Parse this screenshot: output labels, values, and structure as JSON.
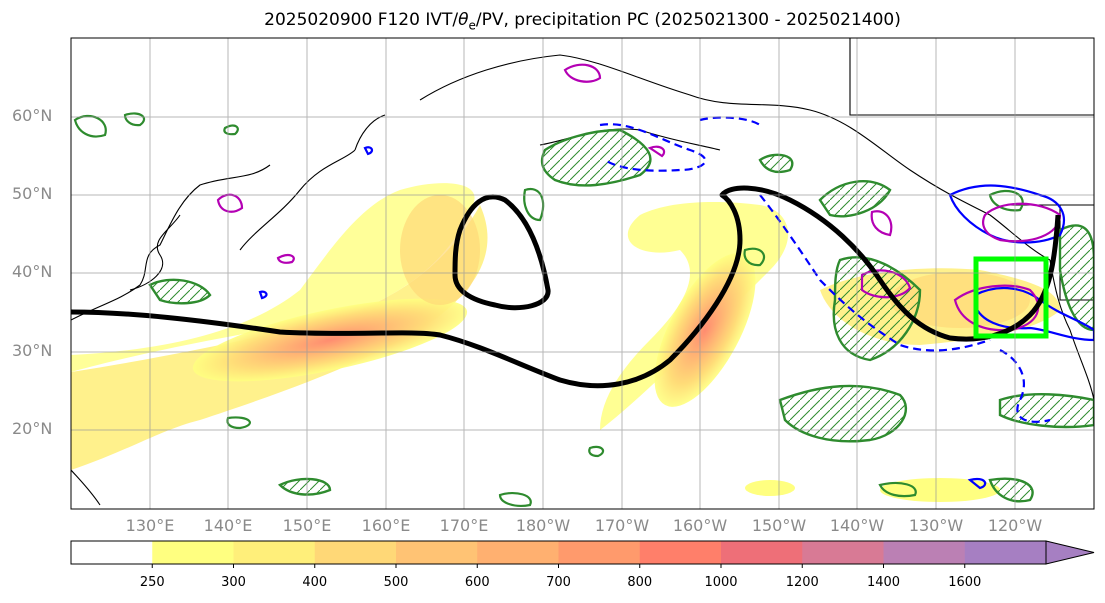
{
  "title": {
    "prefix": "2025020900 F120 IVT/",
    "theta": "θ",
    "theta_sub": "e",
    "suffix": "/PV, precipitation PC (2025021300 - 2025021400)"
  },
  "lat_labels": [
    "60°N",
    "50°N",
    "40°N",
    "30°N",
    "20°N"
  ],
  "lon_labels": [
    "130°E",
    "140°E",
    "150°E",
    "160°E",
    "170°E",
    "180°W",
    "170°W",
    "160°W",
    "150°W",
    "140°W",
    "130°W",
    "120°W"
  ],
  "colorbar": {
    "ticks": [
      "250",
      "300",
      "400",
      "500",
      "600",
      "700",
      "800",
      "1000",
      "1200",
      "1400",
      "1600"
    ],
    "colors": [
      "#ffffff",
      "#ffff80",
      "#ffef7a",
      "#ffd877",
      "#ffc374",
      "#ffb070",
      "#ff9a6c",
      "#ff7f6a",
      "#ee6f78",
      "#d87a95",
      "#bb80b4",
      "#a67fc2"
    ]
  },
  "colors": {
    "precip_contour": "#2e8b2e",
    "theta_e_contour": "#0000ff",
    "pv_contour": "#b400b4",
    "box": "#00ff00",
    "jet_line": "#000000"
  }
}
